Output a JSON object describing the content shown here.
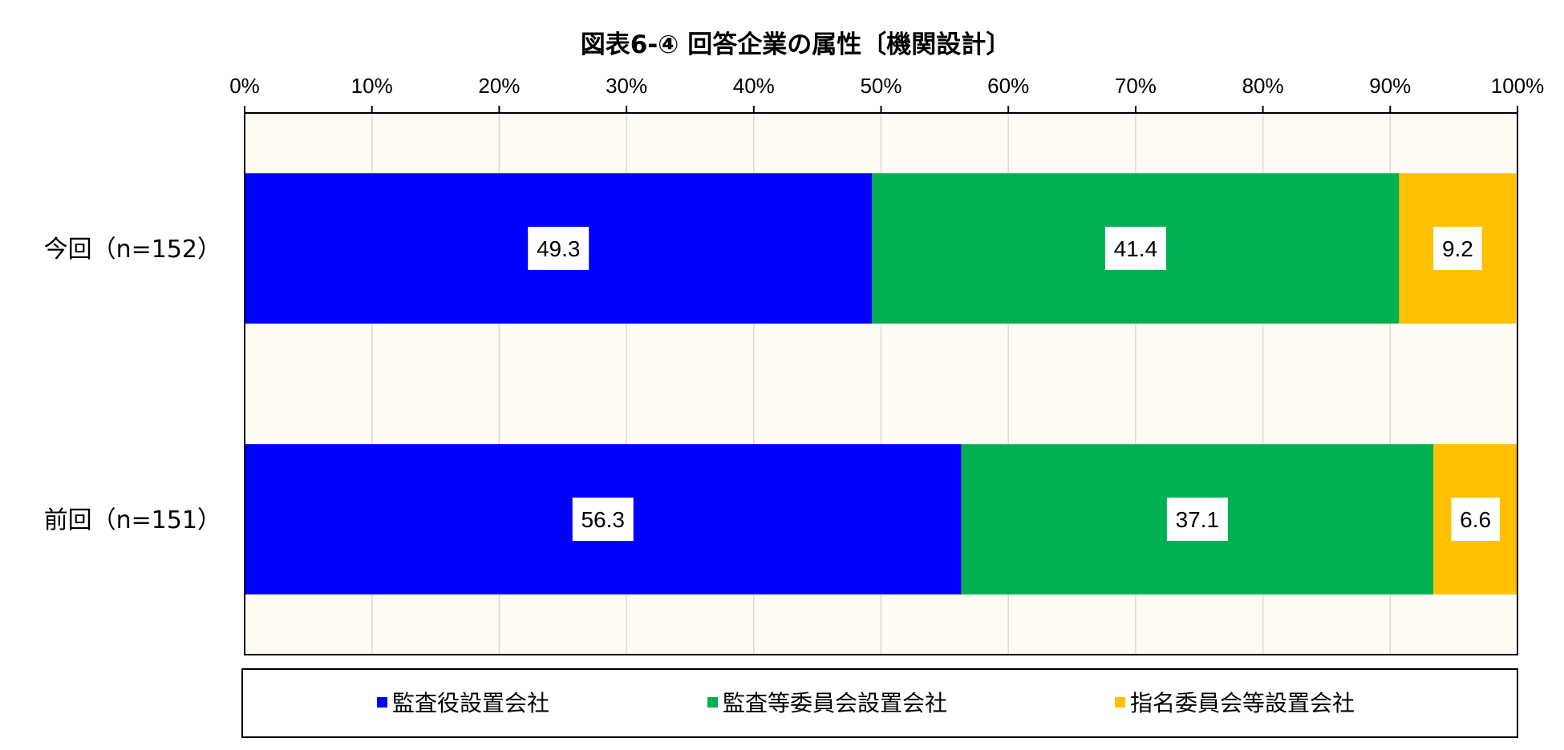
{
  "chart_data": {
    "type": "bar",
    "orientation": "horizontal",
    "stacked": true,
    "title": "図表6-④ 回答企業の属性〔機関設計〕",
    "categories": [
      "今回（n=152）",
      "前回（n=151）"
    ],
    "series": [
      {
        "name": "監査役設置会社",
        "values": [
          49.3,
          56.3
        ],
        "color": "#0000FF"
      },
      {
        "name": "監査等委員会設置会社",
        "values": [
          41.4,
          37.1
        ],
        "color": "#00B050"
      },
      {
        "name": "指名委員会等設置会社",
        "values": [
          9.2,
          6.6
        ],
        "color": "#FFC000"
      }
    ],
    "xlim": [
      0,
      100
    ],
    "x_ticks": [
      "0%",
      "10%",
      "20%",
      "30%",
      "40%",
      "50%",
      "60%",
      "70%",
      "80%",
      "90%",
      "100%"
    ],
    "x_axis_position": "top",
    "grid": true,
    "legend_position": "bottom",
    "plot_background": "#FFFDF3",
    "data_labels": true
  }
}
